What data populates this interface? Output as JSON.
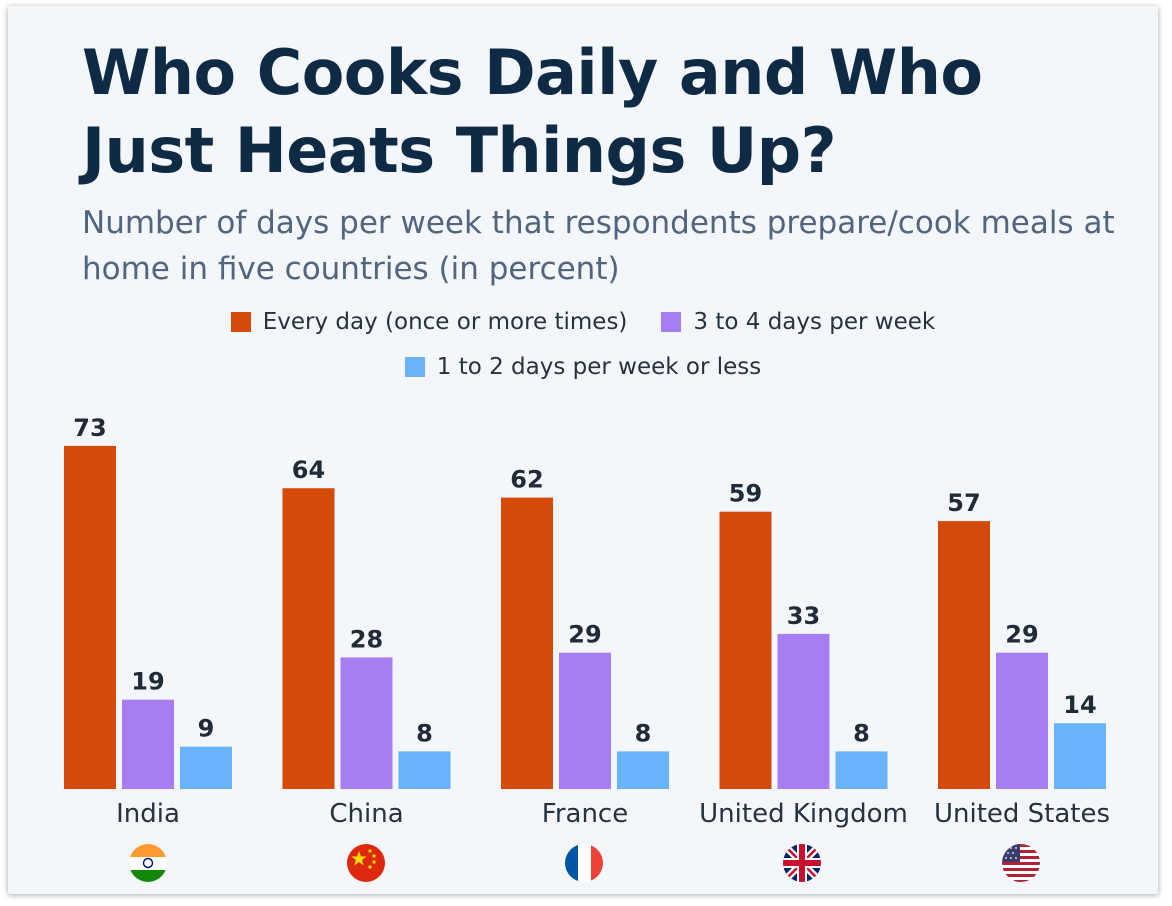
{
  "chart_data": {
    "type": "bar",
    "title": "Who Cooks Daily and Who Just Heats Things Up?",
    "subtitle": "Number of days per week that respondents prepare/cook meals at home in five countries (in percent)",
    "categories": [
      "India",
      "China",
      "France",
      "United Kingdom",
      "United States"
    ],
    "series": [
      {
        "name": "Every day (once or more times)",
        "color": "#d54a09",
        "values": [
          73,
          64,
          62,
          59,
          57
        ]
      },
      {
        "name": "3 to 4 days per week",
        "color": "#a77ef2",
        "values": [
          19,
          28,
          29,
          33,
          29
        ]
      },
      {
        "name": "1 to 2 days per week or less",
        "color": "#69b3fb",
        "values": [
          9,
          8,
          8,
          8,
          14
        ]
      }
    ],
    "flag_icons": [
      "india-flag-icon",
      "china-flag-icon",
      "france-flag-icon",
      "uk-flag-icon",
      "us-flag-icon"
    ],
    "xlabel": "",
    "ylabel": "",
    "ylim": [
      0,
      73
    ],
    "grid": false,
    "legend_position": "top-center"
  }
}
